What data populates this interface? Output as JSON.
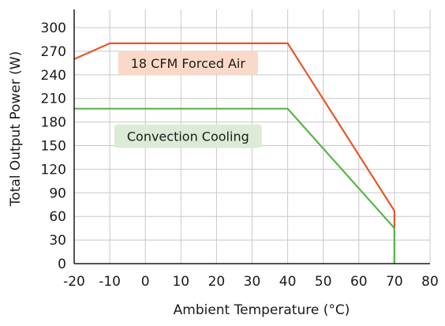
{
  "chart_data": {
    "type": "line",
    "title": "",
    "xlabel": "Ambient Temperature (°C)",
    "ylabel": "Total Output Power (W)",
    "xlim": [
      -20,
      80
    ],
    "ylim": [
      0,
      300
    ],
    "x_ticks": [
      -20,
      -10,
      0,
      10,
      20,
      30,
      40,
      50,
      60,
      70,
      80
    ],
    "y_ticks": [
      0,
      30,
      60,
      90,
      120,
      150,
      180,
      210,
      240,
      270,
      300
    ],
    "grid": true,
    "series": [
      {
        "name": "18 CFM Forced Air",
        "color": "#e8562a",
        "points": [
          [
            -20,
            260
          ],
          [
            -10,
            280
          ],
          [
            40,
            280
          ],
          [
            70,
            67
          ],
          [
            70,
            0
          ]
        ]
      },
      {
        "name": "Convection Cooling",
        "color": "#5ab54a",
        "points": [
          [
            -20,
            197
          ],
          [
            40,
            197
          ],
          [
            70,
            45
          ],
          [
            70,
            0
          ]
        ]
      }
    ],
    "annotations": [
      {
        "text": "18 CFM Forced Air",
        "x": 12,
        "y": 255,
        "background": "#fbd9c8"
      },
      {
        "text": "Convection Cooling",
        "x": 12,
        "y": 162,
        "background": "#dcebd5"
      }
    ]
  }
}
